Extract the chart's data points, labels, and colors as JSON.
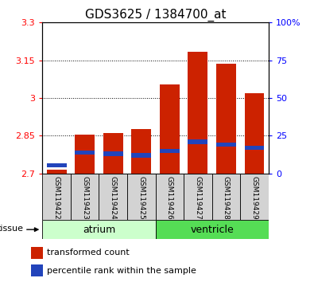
{
  "title": "GDS3625 / 1384700_at",
  "samples": [
    "GSM119422",
    "GSM119423",
    "GSM119424",
    "GSM119425",
    "GSM119426",
    "GSM119427",
    "GSM119428",
    "GSM119429"
  ],
  "tissue_groups": [
    {
      "label": "atrium",
      "indices": [
        0,
        1,
        2,
        3
      ],
      "color": "#ccffcc"
    },
    {
      "label": "ventricle",
      "indices": [
        4,
        5,
        6,
        7
      ],
      "color": "#55dd55"
    }
  ],
  "red_values": [
    2.715,
    2.855,
    2.862,
    2.878,
    3.053,
    3.185,
    3.135,
    3.02
  ],
  "blue_values_pct": [
    5.5,
    14,
    13,
    12,
    15,
    21,
    19,
    17
  ],
  "y_min": 2.7,
  "y_max": 3.3,
  "y_ticks": [
    2.7,
    2.85,
    3.0,
    3.15,
    3.3
  ],
  "y_tick_labels": [
    "2.7",
    "2.85",
    "3",
    "3.15",
    "3.3"
  ],
  "right_y_ticks": [
    0,
    25,
    50,
    75,
    100
  ],
  "right_y_tick_labels": [
    "0",
    "25",
    "50",
    "75",
    "100%"
  ],
  "bar_width": 0.7,
  "bar_color": "#cc2200",
  "blue_color": "#2244bb",
  "title_fontsize": 11,
  "tick_label_fontsize": 8,
  "sample_fontsize": 6.5,
  "tissue_fontsize": 9,
  "legend_fontsize": 8
}
